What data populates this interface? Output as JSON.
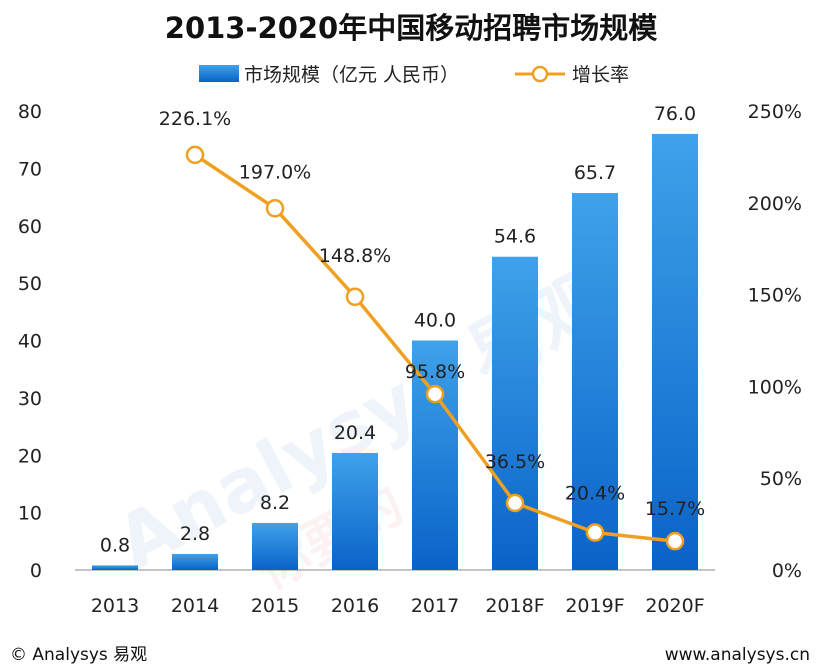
{
  "chart_data": {
    "type": "bar+line",
    "title": "2013-2020年中国移动招聘市场规模",
    "categories": [
      "2013",
      "2014",
      "2015",
      "2016",
      "2017",
      "2018F",
      "2019F",
      "2020F"
    ],
    "series": [
      {
        "name": "市场规模（亿元 人民币）",
        "type": "bar",
        "axis": "left",
        "values": [
          0.8,
          2.8,
          8.2,
          20.4,
          40.0,
          54.6,
          65.7,
          76.0
        ],
        "labels": [
          "0.8",
          "2.8",
          "8.2",
          "20.4",
          "40.0",
          "54.6",
          "65.7",
          "76.0"
        ]
      },
      {
        "name": "增长率",
        "type": "line",
        "axis": "right",
        "values": [
          null,
          226.1,
          197.0,
          148.8,
          95.8,
          36.5,
          20.4,
          15.7
        ],
        "labels": [
          "",
          "226.1%",
          "197.0%",
          "148.8%",
          "95.8%",
          "36.5%",
          "20.4%",
          "15.7%"
        ]
      }
    ],
    "y_left": {
      "min": 0,
      "max": 80,
      "step": 10,
      "ticks": [
        "0",
        "10",
        "20",
        "30",
        "40",
        "50",
        "60",
        "70",
        "80"
      ]
    },
    "y_right": {
      "min": 0,
      "max": 250,
      "step": 50,
      "ticks": [
        "0%",
        "50%",
        "100%",
        "150%",
        "200%",
        "250%"
      ]
    },
    "legend": {
      "bar_label": "市场规模（亿元 人民币）",
      "line_label": "增长率",
      "position": "top"
    },
    "colors": {
      "bar_top": "#3fa2ea",
      "bar_bottom": "#0a62c8",
      "line": "#f0a020",
      "marker_fill": "#ffffff",
      "axis": "#888888"
    }
  },
  "footer": {
    "left": "© Analysys 易观",
    "right": "www.analysys.cn"
  },
  "watermark": {
    "text": "Analysys 易观",
    "sub": "你要的"
  }
}
